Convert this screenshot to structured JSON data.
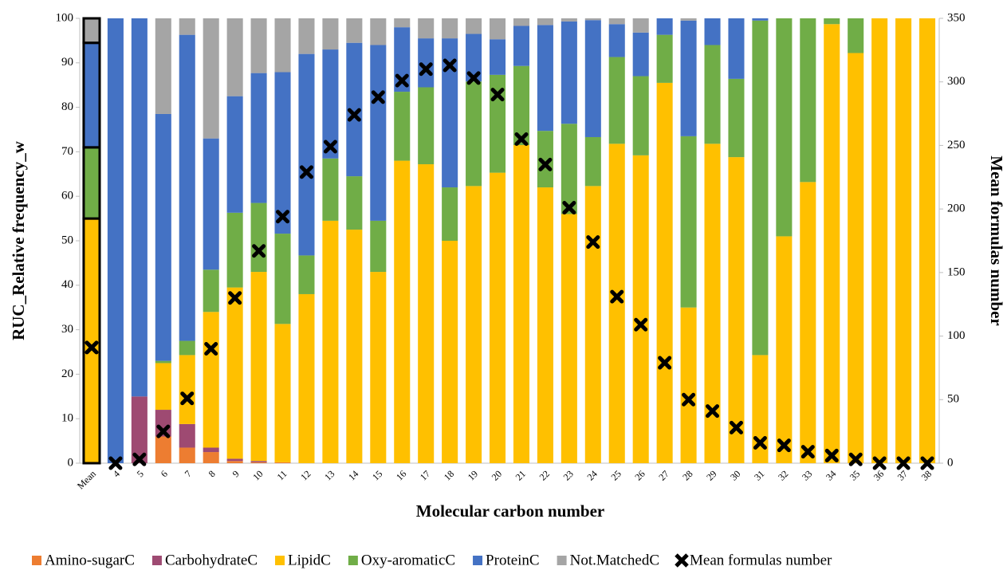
{
  "chart_data": {
    "type": "bar",
    "stacked": true,
    "x_label": "Molecular carbon number",
    "y_label": "RUC_Relative frequency_w",
    "y2_label": "Mean formulas number",
    "categories": [
      "Mean",
      "4",
      "5",
      "6",
      "7",
      "8",
      "9",
      "10",
      "11",
      "12",
      "13",
      "14",
      "15",
      "16",
      "17",
      "18",
      "19",
      "20",
      "21",
      "22",
      "23",
      "24",
      "25",
      "26",
      "27",
      "28",
      "29",
      "30",
      "31",
      "32",
      "33",
      "34",
      "35",
      "36",
      "37",
      "38"
    ],
    "series": [
      {
        "name": "Amino-sugarC",
        "color": "#ed7d31",
        "values": [
          0,
          0,
          0,
          6,
          3.5,
          2.5,
          0.5,
          0.2,
          0.2,
          0,
          0,
          0,
          0,
          0,
          0,
          0,
          0,
          0,
          0,
          0,
          0,
          0,
          0,
          0,
          0,
          0,
          0,
          0,
          0,
          0,
          0,
          0,
          0,
          0,
          0,
          0
        ]
      },
      {
        "name": "CarbohydrateC",
        "color": "#9e4a72",
        "values": [
          0,
          0,
          15,
          6,
          5.3,
          1,
          0.5,
          0.3,
          0,
          0,
          0,
          0,
          0,
          0,
          0,
          0,
          0,
          0,
          0,
          0,
          0,
          0,
          0,
          0,
          0,
          0,
          0,
          0,
          0,
          0,
          0,
          0,
          0,
          0,
          0,
          0
        ]
      },
      {
        "name": "LipidC",
        "color": "#ffc000",
        "values": [
          55,
          0,
          0,
          10.5,
          15.5,
          30.5,
          38.5,
          42.5,
          31.1,
          38,
          54.5,
          52.5,
          43,
          68,
          67.2,
          50,
          62.3,
          65.3,
          71.5,
          62,
          56,
          62.3,
          71.8,
          69.2,
          85.5,
          35,
          71.8,
          68.8,
          24.3,
          51,
          63.2,
          98.7,
          92.2,
          100,
          100,
          100
        ]
      },
      {
        "name": "Oxy-aromaticC",
        "color": "#70ad47",
        "values": [
          16,
          0,
          0,
          0.5,
          3.2,
          9.5,
          16.8,
          15.5,
          20.3,
          8.7,
          14,
          12,
          11.5,
          15.5,
          17.3,
          12,
          23.5,
          22,
          17.8,
          12.7,
          20.3,
          11,
          19.5,
          17.8,
          10.8,
          38.5,
          22.2,
          17.6,
          75.2,
          49,
          36.8,
          1.3,
          7.8,
          0,
          0,
          0
        ]
      },
      {
        "name": "ProteinC",
        "color": "#4472c4",
        "values": [
          23.5,
          100,
          85,
          55.5,
          68.8,
          29.5,
          26.2,
          29.2,
          36.3,
          45.3,
          24.5,
          30,
          39.5,
          14.5,
          11,
          33.5,
          10.7,
          8,
          9,
          23.8,
          23,
          26.3,
          7.4,
          9.8,
          3.7,
          26,
          6,
          13.6,
          0.5,
          0,
          0,
          0,
          0,
          0,
          0,
          0
        ]
      },
      {
        "name": "Not.MatchedC",
        "color": "#a5a5a5",
        "values": [
          5.5,
          0,
          0,
          21.5,
          3.7,
          27,
          17.5,
          12.3,
          12.1,
          8,
          7,
          5.5,
          6,
          2,
          4.5,
          4.5,
          3.5,
          4.7,
          1.7,
          1.5,
          0.7,
          0.4,
          1.3,
          3.2,
          0,
          0.5,
          0,
          0,
          0,
          0,
          0,
          0,
          0,
          0,
          0,
          0
        ]
      },
      {
        "name": "Mean formulas number",
        "color": "#000000",
        "axis": "y2",
        "values": [
          91,
          0,
          3,
          25,
          51,
          90,
          130,
          167,
          194,
          229,
          249,
          274,
          288,
          301,
          310,
          313,
          303,
          290,
          255,
          235,
          201,
          174,
          131,
          109,
          79,
          50,
          41,
          28,
          16,
          14,
          9,
          6,
          3,
          0,
          0,
          0
        ]
      }
    ],
    "ylim": [
      0,
      100
    ],
    "yticks": [
      0,
      10,
      20,
      30,
      40,
      50,
      60,
      70,
      80,
      90,
      100
    ],
    "y2lim": [
      0,
      350
    ],
    "y2ticks": [
      0,
      50,
      100,
      150,
      200,
      250,
      300,
      350
    ],
    "grid": false,
    "legend": "bottom"
  }
}
